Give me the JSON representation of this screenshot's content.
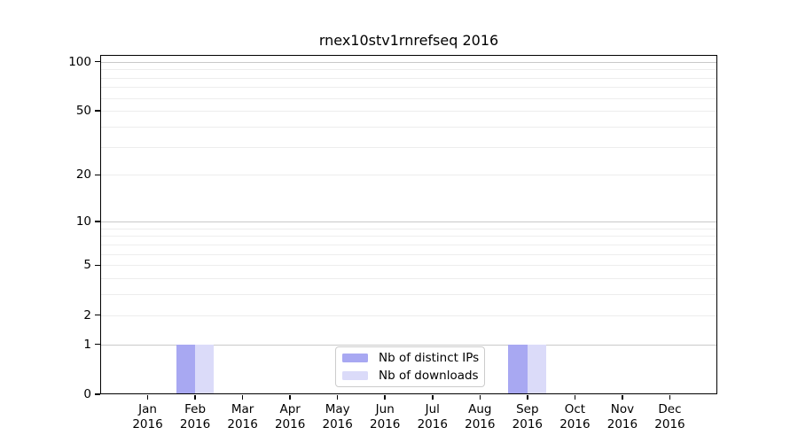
{
  "chart_data": {
    "type": "bar",
    "title": "rnex10stv1rnrefseq 2016",
    "categories": [
      "Jan 2016",
      "Feb 2016",
      "Mar 2016",
      "Apr 2016",
      "May 2016",
      "Jun 2016",
      "Jul 2016",
      "Aug 2016",
      "Sep 2016",
      "Oct 2016",
      "Nov 2016",
      "Dec 2016"
    ],
    "x_tick_months": [
      "Jan",
      "Feb",
      "Mar",
      "Apr",
      "May",
      "Jun",
      "Jul",
      "Aug",
      "Sep",
      "Oct",
      "Nov",
      "Dec"
    ],
    "x_tick_year": "2016",
    "series": [
      {
        "name": "Nb of distinct IPs",
        "color": "#a8a8f2",
        "values": [
          0,
          1,
          0,
          0,
          0,
          0,
          0,
          0,
          1,
          0,
          0,
          0
        ]
      },
      {
        "name": "Nb of downloads",
        "color": "#dbdbf9",
        "values": [
          0,
          1,
          0,
          0,
          0,
          0,
          0,
          0,
          1,
          0,
          0,
          0
        ]
      }
    ],
    "xlabel": "",
    "ylabel": "",
    "yscale": "log10(value+1)",
    "ylim": [
      0,
      110
    ],
    "y_tick_values": [
      0,
      1,
      2,
      5,
      10,
      20,
      50,
      100
    ],
    "y_tick_labels": [
      "0",
      "1",
      "2",
      "5",
      "10",
      "20",
      "50",
      "100"
    ],
    "grid": {
      "orientation": "horizontal",
      "major_values": [
        1,
        10,
        100
      ],
      "minor_values": [
        2,
        3,
        4,
        5,
        6,
        7,
        8,
        9,
        20,
        30,
        40,
        50,
        60,
        70,
        80,
        90
      ],
      "major_color": "#c9c9c9",
      "minor_color": "#ededed"
    },
    "legend": {
      "position": "lower center",
      "entries": [
        "Nb of distinct IPs",
        "Nb of downloads"
      ]
    },
    "colors": {
      "background": "#ffffff",
      "spine": "#000000",
      "text": "#000000"
    }
  }
}
